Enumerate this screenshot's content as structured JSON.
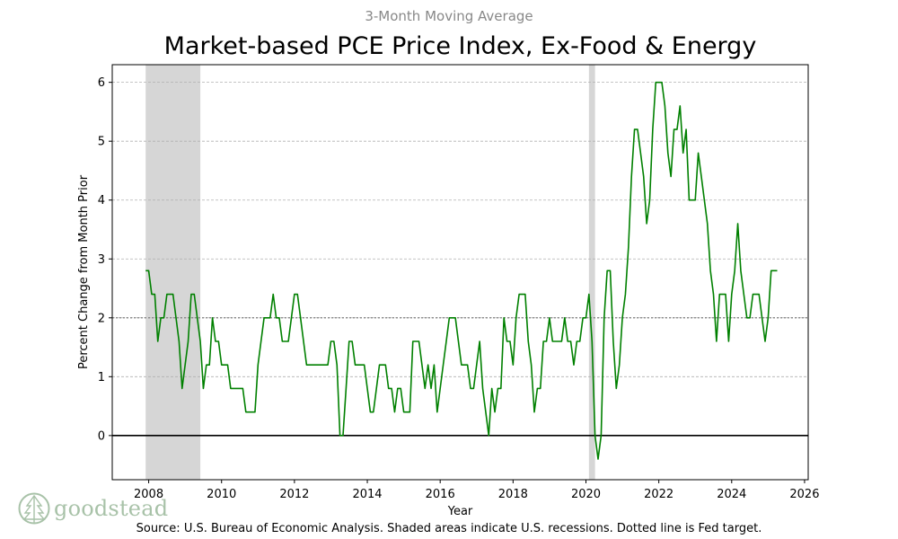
{
  "colors": {
    "line": "#008000",
    "recession": "#d6d6d6",
    "target": "#808080",
    "subtitle": "#888888",
    "logo": "#a8c2a8"
  },
  "logo": {
    "text": "goodstead",
    "icon": "tree-icon"
  },
  "chart_data": {
    "type": "line",
    "subtitle": "3-Month Moving Average",
    "title": "Market-based PCE Price Index, Ex-Food & Energy",
    "xlabel": "Year",
    "ylabel": "Percent Change from Month Prior",
    "source": "Source: U.S. Bureau of Economic Analysis. Shaded areas indicate U.S. recessions. Dotted line is Fed target.",
    "xlim": [
      2007.0,
      2026.1
    ],
    "ylim": [
      -0.75,
      6.3
    ],
    "x_ticks": [
      2008,
      2010,
      2012,
      2014,
      2016,
      2018,
      2020,
      2022,
      2024,
      2026
    ],
    "x_tick_labels": [
      "2008",
      "2010",
      "2012",
      "2014",
      "2016",
      "2018",
      "2020",
      "2022",
      "2024",
      "2026"
    ],
    "y_ticks": [
      0,
      1,
      2,
      3,
      4,
      5,
      6
    ],
    "y_tick_labels": [
      "0",
      "1",
      "2",
      "3",
      "4",
      "5",
      "6"
    ],
    "fed_target": 2,
    "zero_line": 0,
    "grid": "horizontal dashed",
    "recessions": [
      {
        "start": 2007.917,
        "end": 2009.417
      },
      {
        "start": 2020.083,
        "end": 2020.25
      }
    ],
    "series": [
      {
        "name": "Market-based PCE ex-food & energy, 3-month moving average",
        "points": [
          [
            2007.917,
            2.8
          ],
          [
            2008.0,
            2.8
          ],
          [
            2008.083,
            2.4
          ],
          [
            2008.167,
            2.4
          ],
          [
            2008.25,
            1.6
          ],
          [
            2008.333,
            2.0
          ],
          [
            2008.417,
            2.0
          ],
          [
            2008.5,
            2.4
          ],
          [
            2008.583,
            2.4
          ],
          [
            2008.667,
            2.4
          ],
          [
            2008.75,
            2.0
          ],
          [
            2008.833,
            1.6
          ],
          [
            2008.917,
            0.8
          ],
          [
            2009.0,
            1.2
          ],
          [
            2009.083,
            1.6
          ],
          [
            2009.167,
            2.4
          ],
          [
            2009.25,
            2.4
          ],
          [
            2009.333,
            2.0
          ],
          [
            2009.417,
            1.6
          ],
          [
            2009.5,
            0.8
          ],
          [
            2009.583,
            1.2
          ],
          [
            2009.667,
            1.2
          ],
          [
            2009.75,
            2.0
          ],
          [
            2009.833,
            1.6
          ],
          [
            2009.917,
            1.6
          ],
          [
            2010.0,
            1.2
          ],
          [
            2010.083,
            1.2
          ],
          [
            2010.167,
            1.2
          ],
          [
            2010.25,
            0.8
          ],
          [
            2010.333,
            0.8
          ],
          [
            2010.417,
            0.8
          ],
          [
            2010.5,
            0.8
          ],
          [
            2010.583,
            0.8
          ],
          [
            2010.667,
            0.4
          ],
          [
            2010.75,
            0.4
          ],
          [
            2010.833,
            0.4
          ],
          [
            2010.917,
            0.4
          ],
          [
            2011.0,
            1.2
          ],
          [
            2011.083,
            1.6
          ],
          [
            2011.167,
            2.0
          ],
          [
            2011.25,
            2.0
          ],
          [
            2011.333,
            2.0
          ],
          [
            2011.417,
            2.4
          ],
          [
            2011.5,
            2.0
          ],
          [
            2011.583,
            2.0
          ],
          [
            2011.667,
            1.6
          ],
          [
            2011.75,
            1.6
          ],
          [
            2011.833,
            1.6
          ],
          [
            2011.917,
            2.0
          ],
          [
            2012.0,
            2.4
          ],
          [
            2012.083,
            2.4
          ],
          [
            2012.167,
            2.0
          ],
          [
            2012.25,
            1.6
          ],
          [
            2012.333,
            1.2
          ],
          [
            2012.417,
            1.2
          ],
          [
            2012.5,
            1.2
          ],
          [
            2012.583,
            1.2
          ],
          [
            2012.667,
            1.2
          ],
          [
            2012.75,
            1.2
          ],
          [
            2012.833,
            1.2
          ],
          [
            2012.917,
            1.2
          ],
          [
            2013.0,
            1.6
          ],
          [
            2013.083,
            1.6
          ],
          [
            2013.167,
            1.2
          ],
          [
            2013.25,
            0.0
          ],
          [
            2013.333,
            0.0
          ],
          [
            2013.417,
            0.8
          ],
          [
            2013.5,
            1.6
          ],
          [
            2013.583,
            1.6
          ],
          [
            2013.667,
            1.2
          ],
          [
            2013.75,
            1.2
          ],
          [
            2013.833,
            1.2
          ],
          [
            2013.917,
            1.2
          ],
          [
            2014.0,
            0.8
          ],
          [
            2014.083,
            0.4
          ],
          [
            2014.167,
            0.4
          ],
          [
            2014.25,
            0.8
          ],
          [
            2014.333,
            1.2
          ],
          [
            2014.417,
            1.2
          ],
          [
            2014.5,
            1.2
          ],
          [
            2014.583,
            0.8
          ],
          [
            2014.667,
            0.8
          ],
          [
            2014.75,
            0.4
          ],
          [
            2014.833,
            0.8
          ],
          [
            2014.917,
            0.8
          ],
          [
            2015.0,
            0.4
          ],
          [
            2015.083,
            0.4
          ],
          [
            2015.167,
            0.4
          ],
          [
            2015.25,
            1.6
          ],
          [
            2015.333,
            1.6
          ],
          [
            2015.417,
            1.6
          ],
          [
            2015.5,
            1.2
          ],
          [
            2015.583,
            0.8
          ],
          [
            2015.667,
            1.2
          ],
          [
            2015.75,
            0.8
          ],
          [
            2015.833,
            1.2
          ],
          [
            2015.917,
            0.4
          ],
          [
            2016.0,
            0.8
          ],
          [
            2016.083,
            1.2
          ],
          [
            2016.167,
            1.6
          ],
          [
            2016.25,
            2.0
          ],
          [
            2016.333,
            2.0
          ],
          [
            2016.417,
            2.0
          ],
          [
            2016.5,
            1.6
          ],
          [
            2016.583,
            1.2
          ],
          [
            2016.667,
            1.2
          ],
          [
            2016.75,
            1.2
          ],
          [
            2016.833,
            0.8
          ],
          [
            2016.917,
            0.8
          ],
          [
            2017.0,
            1.2
          ],
          [
            2017.083,
            1.6
          ],
          [
            2017.167,
            0.8
          ],
          [
            2017.25,
            0.4
          ],
          [
            2017.333,
            0.0
          ],
          [
            2017.417,
            0.8
          ],
          [
            2017.5,
            0.4
          ],
          [
            2017.583,
            0.8
          ],
          [
            2017.667,
            0.8
          ],
          [
            2017.75,
            2.0
          ],
          [
            2017.833,
            1.6
          ],
          [
            2017.917,
            1.6
          ],
          [
            2018.0,
            1.2
          ],
          [
            2018.083,
            2.0
          ],
          [
            2018.167,
            2.4
          ],
          [
            2018.25,
            2.4
          ],
          [
            2018.333,
            2.4
          ],
          [
            2018.417,
            1.6
          ],
          [
            2018.5,
            1.2
          ],
          [
            2018.583,
            0.4
          ],
          [
            2018.667,
            0.8
          ],
          [
            2018.75,
            0.8
          ],
          [
            2018.833,
            1.6
          ],
          [
            2018.917,
            1.6
          ],
          [
            2019.0,
            2.0
          ],
          [
            2019.083,
            1.6
          ],
          [
            2019.167,
            1.6
          ],
          [
            2019.25,
            1.6
          ],
          [
            2019.333,
            1.6
          ],
          [
            2019.417,
            2.0
          ],
          [
            2019.5,
            1.6
          ],
          [
            2019.583,
            1.6
          ],
          [
            2019.667,
            1.2
          ],
          [
            2019.75,
            1.6
          ],
          [
            2019.833,
            1.6
          ],
          [
            2019.917,
            2.0
          ],
          [
            2020.0,
            2.0
          ],
          [
            2020.083,
            2.4
          ],
          [
            2020.167,
            1.6
          ],
          [
            2020.25,
            0.0
          ],
          [
            2020.333,
            -0.4
          ],
          [
            2020.417,
            0.0
          ],
          [
            2020.5,
            2.0
          ],
          [
            2020.583,
            2.8
          ],
          [
            2020.667,
            2.8
          ],
          [
            2020.75,
            1.6
          ],
          [
            2020.833,
            0.8
          ],
          [
            2020.917,
            1.2
          ],
          [
            2021.0,
            2.0
          ],
          [
            2021.083,
            2.4
          ],
          [
            2021.167,
            3.2
          ],
          [
            2021.25,
            4.4
          ],
          [
            2021.333,
            5.2
          ],
          [
            2021.417,
            5.2
          ],
          [
            2021.5,
            4.8
          ],
          [
            2021.583,
            4.4
          ],
          [
            2021.667,
            3.6
          ],
          [
            2021.75,
            4.0
          ],
          [
            2021.833,
            5.2
          ],
          [
            2021.917,
            6.0
          ],
          [
            2022.0,
            6.0
          ],
          [
            2022.083,
            6.0
          ],
          [
            2022.167,
            5.6
          ],
          [
            2022.25,
            4.8
          ],
          [
            2022.333,
            4.4
          ],
          [
            2022.417,
            5.2
          ],
          [
            2022.5,
            5.2
          ],
          [
            2022.583,
            5.6
          ],
          [
            2022.667,
            4.8
          ],
          [
            2022.75,
            5.2
          ],
          [
            2022.833,
            4.0
          ],
          [
            2022.917,
            4.0
          ],
          [
            2023.0,
            4.0
          ],
          [
            2023.083,
            4.8
          ],
          [
            2023.167,
            4.4
          ],
          [
            2023.25,
            4.0
          ],
          [
            2023.333,
            3.6
          ],
          [
            2023.417,
            2.8
          ],
          [
            2023.5,
            2.4
          ],
          [
            2023.583,
            1.6
          ],
          [
            2023.667,
            2.4
          ],
          [
            2023.75,
            2.4
          ],
          [
            2023.833,
            2.4
          ],
          [
            2023.917,
            1.6
          ],
          [
            2024.0,
            2.4
          ],
          [
            2024.083,
            2.8
          ],
          [
            2024.167,
            3.6
          ],
          [
            2024.25,
            2.8
          ],
          [
            2024.333,
            2.4
          ],
          [
            2024.417,
            2.0
          ],
          [
            2024.5,
            2.0
          ],
          [
            2024.583,
            2.4
          ],
          [
            2024.667,
            2.4
          ],
          [
            2024.75,
            2.4
          ],
          [
            2024.833,
            2.0
          ],
          [
            2024.917,
            1.6
          ],
          [
            2025.0,
            2.0
          ],
          [
            2025.083,
            2.8
          ],
          [
            2025.167,
            2.8
          ],
          [
            2025.25,
            2.8
          ]
        ]
      }
    ]
  }
}
